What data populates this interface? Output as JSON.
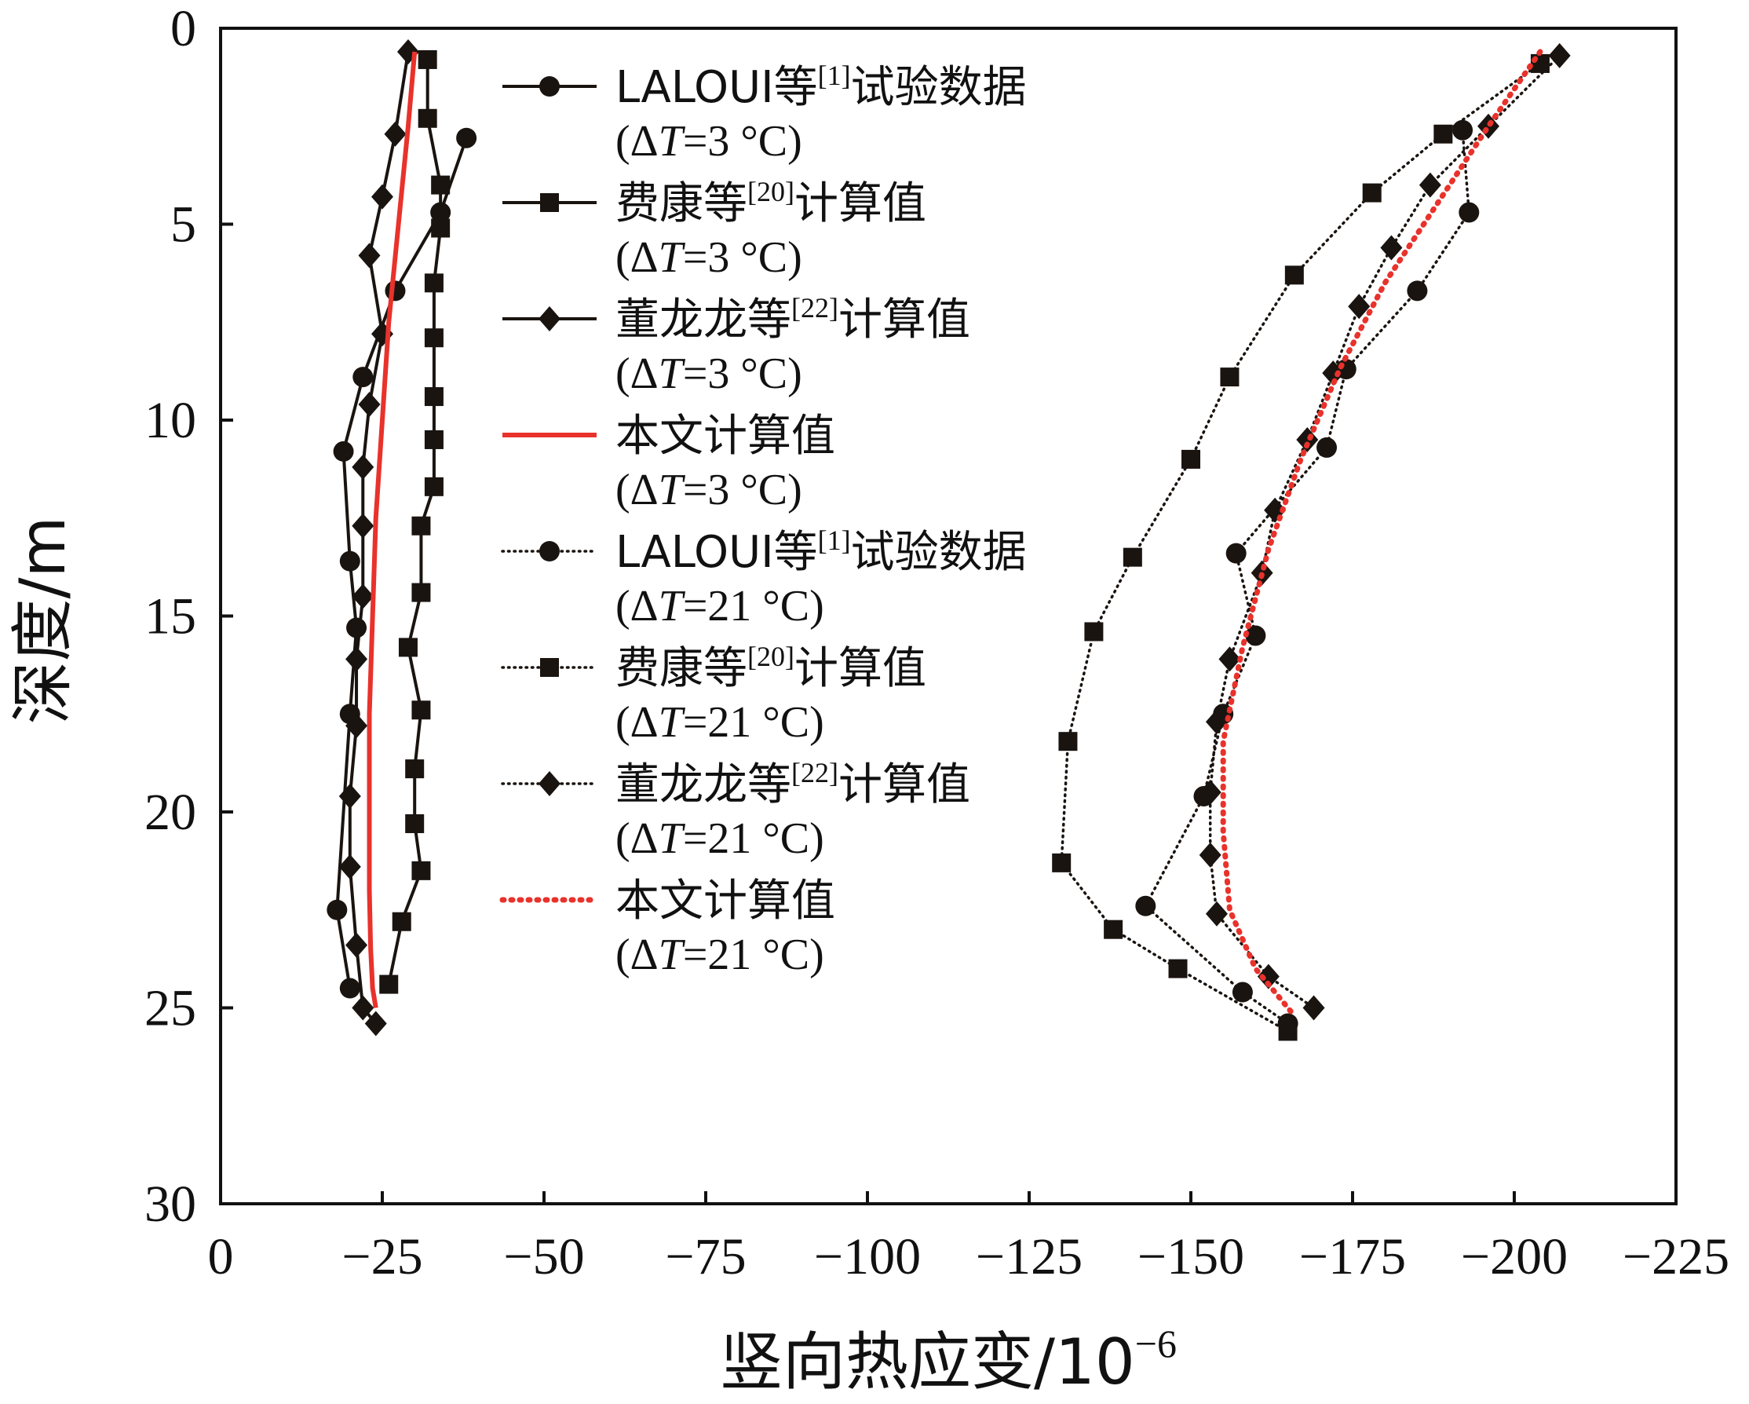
{
  "chart_data": {
    "type": "line",
    "title": "",
    "xlabel": "竖向热应变/10",
    "xlabel_exp": "−6",
    "ylabel": "深度/m",
    "xlim": [
      0,
      -225
    ],
    "ylim": [
      30,
      0
    ],
    "x_ticks": [
      0,
      -25,
      -50,
      -75,
      -100,
      -125,
      -150,
      -175,
      -200,
      -225
    ],
    "x_tick_labels": [
      "0",
      "−25",
      "−50",
      "−75",
      "−100",
      "−125",
      "−150",
      "−175",
      "−200",
      "−225"
    ],
    "y_ticks": [
      0,
      5,
      10,
      15,
      20,
      25,
      30
    ],
    "y_tick_labels": [
      "0",
      "5",
      "10",
      "15",
      "20",
      "25",
      "30"
    ],
    "grid": false,
    "legend_position": "top-center",
    "series": [
      {
        "name": "LALOUI等[1]试验数据",
        "name_main": "LALOUI等",
        "name_ref": "[1]",
        "name_tail": "试验数据",
        "condition": "(ΔT=3 °C)",
        "cond_pre": "(Δ",
        "cond_italic": "T",
        "cond_post": "=3 °C)",
        "marker": "circle",
        "line": "solid",
        "color": "#1a1410",
        "x": [
          -38,
          -34,
          -27,
          -22,
          -19,
          -20,
          -21,
          -20,
          -18,
          -20
        ],
        "y": [
          2.8,
          4.7,
          6.7,
          8.9,
          10.8,
          13.6,
          15.3,
          17.5,
          22.5,
          24.5
        ]
      },
      {
        "name": "费康等[20]计算值",
        "name_main": "费康等",
        "name_ref": "[20]",
        "name_tail": "计算值",
        "condition": "(ΔT=3 °C)",
        "cond_pre": "(Δ",
        "cond_italic": "T",
        "cond_post": "=3 °C)",
        "marker": "square",
        "line": "solid",
        "color": "#1a1410",
        "x": [
          -32,
          -32,
          -34,
          -34,
          -33,
          -33,
          -33,
          -33,
          -33,
          -31,
          -31,
          -29,
          -31,
          -30,
          -30,
          -31,
          -28,
          -26
        ],
        "y": [
          0.8,
          2.3,
          4.0,
          5.1,
          6.5,
          7.9,
          9.4,
          10.5,
          11.7,
          12.7,
          14.4,
          15.8,
          17.4,
          18.9,
          20.3,
          21.5,
          22.8,
          24.4
        ]
      },
      {
        "name": "董龙龙等[22]计算值",
        "name_main": "董龙龙等",
        "name_ref": "[22]",
        "name_tail": "计算值",
        "condition": "(ΔT=3 °C)",
        "cond_pre": "(Δ",
        "cond_italic": "T",
        "cond_post": "=3 °C)",
        "marker": "diamond",
        "line": "solid",
        "color": "#1a1410",
        "x": [
          -29,
          -27,
          -25,
          -23,
          -25,
          -23,
          -22,
          -22,
          -22,
          -21,
          -21,
          -20,
          -20,
          -21,
          -22,
          -24
        ],
        "y": [
          0.6,
          2.7,
          4.3,
          5.8,
          7.8,
          9.6,
          11.2,
          12.7,
          14.5,
          16.1,
          17.8,
          19.6,
          21.4,
          23.4,
          25.0,
          25.4
        ]
      },
      {
        "name": "本文计算值",
        "name_main": "本文计算值",
        "name_ref": "",
        "name_tail": "",
        "condition": "(ΔT=3 °C)",
        "cond_pre": "(Δ",
        "cond_italic": "T",
        "cond_post": "=3 °C)",
        "marker": "none",
        "line": "solid",
        "color": "#e8322b",
        "x": [
          -30,
          -29,
          -27.5,
          -26,
          -25,
          -24,
          -23.5,
          -23,
          -23,
          -23,
          -23.2,
          -23.5,
          -24
        ],
        "y": [
          0.6,
          2.5,
          5,
          7.5,
          10,
          12.5,
          15,
          17.5,
          20,
          22,
          23.5,
          24.5,
          25
        ]
      },
      {
        "name": "LALOUI等[1]试验数据",
        "name_main": "LALOUI等",
        "name_ref": "[1]",
        "name_tail": "试验数据",
        "condition": "(ΔT=21 °C)",
        "cond_pre": "(Δ",
        "cond_italic": "T",
        "cond_post": "=21 °C)",
        "marker": "circle",
        "line": "dotted",
        "color": "#1a1410",
        "x": [
          -192,
          -193,
          -185,
          -174,
          -171,
          -157,
          -160,
          -155,
          -152,
          -143,
          -158,
          -165
        ],
        "y": [
          2.6,
          4.7,
          6.7,
          8.7,
          10.7,
          13.4,
          15.5,
          17.5,
          19.6,
          22.4,
          24.6,
          25.4
        ]
      },
      {
        "name": "费康等[20]计算值",
        "name_main": "费康等",
        "name_ref": "[20]",
        "name_tail": "计算值",
        "condition": "(ΔT=21 °C)",
        "cond_pre": "(Δ",
        "cond_italic": "T",
        "cond_post": "=21 °C)",
        "marker": "square",
        "line": "dotted",
        "color": "#1a1410",
        "x": [
          -204,
          -189,
          -178,
          -166,
          -156,
          -150,
          -141,
          -135,
          -131,
          -130,
          -138,
          -148,
          -165
        ],
        "y": [
          0.9,
          2.7,
          4.2,
          6.3,
          8.9,
          11.0,
          13.5,
          15.4,
          18.2,
          21.3,
          23.0,
          24.0,
          25.6
        ]
      },
      {
        "name": "董龙龙等[22]计算值",
        "name_main": "董龙龙等",
        "name_ref": "[22]",
        "name_tail": "计算值",
        "condition": "(ΔT=21 °C)",
        "cond_pre": "(Δ",
        "cond_italic": "T",
        "cond_post": "=21 °C)",
        "marker": "diamond",
        "line": "dotted",
        "color": "#1a1410",
        "x": [
          -207,
          -196,
          -187,
          -181,
          -176,
          -172,
          -168,
          -163,
          -161,
          -156,
          -154,
          -153,
          -153,
          -154,
          -162,
          -169
        ],
        "y": [
          0.7,
          2.5,
          4.0,
          5.6,
          7.1,
          8.8,
          10.5,
          12.3,
          13.9,
          16.1,
          17.7,
          19.5,
          21.1,
          22.6,
          24.2,
          25.0
        ]
      },
      {
        "name": "本文计算值",
        "name_main": "本文计算值",
        "name_ref": "",
        "name_tail": "",
        "condition": "(ΔT=21 °C)",
        "cond_pre": "(Δ",
        "cond_italic": "T",
        "cond_post": "=21 °C)",
        "marker": "none",
        "line": "dotted",
        "color": "#e8322b",
        "x": [
          -204,
          -196,
          -188,
          -180,
          -173,
          -167,
          -162,
          -158,
          -155,
          -155,
          -156,
          -160,
          -166
        ],
        "y": [
          0.6,
          2.5,
          4.5,
          6.5,
          8.7,
          11.0,
          13.3,
          15.8,
          18.2,
          20.5,
          22.5,
          24.0,
          25.2
        ]
      }
    ]
  }
}
